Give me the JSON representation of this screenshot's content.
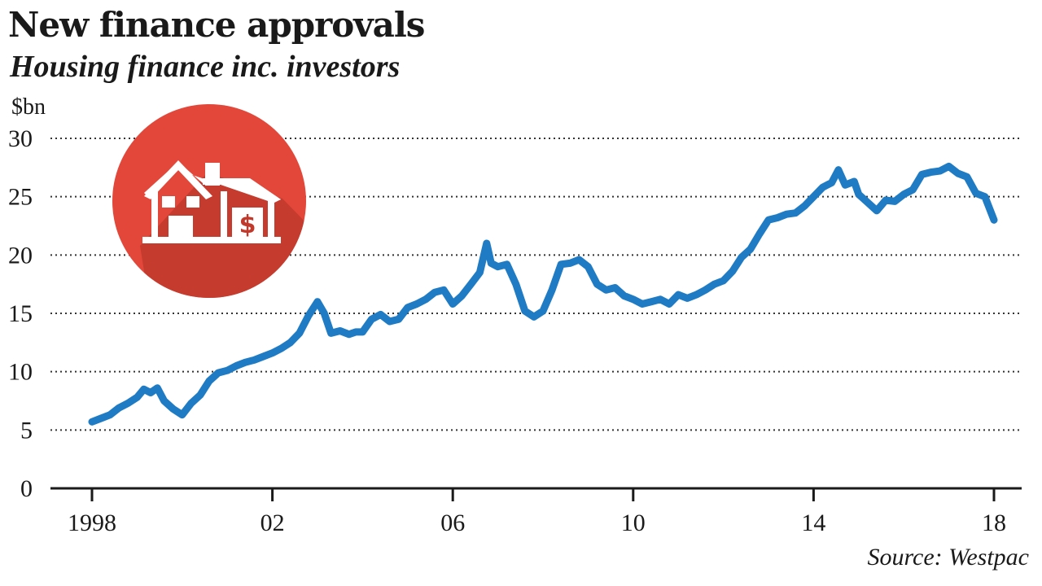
{
  "title": "New finance approvals",
  "subtitle": "Housing finance inc. investors",
  "source": "Source: Westpac",
  "icon": {
    "name": "house-dollar-icon",
    "circle_color": "#e2473a",
    "shadow_color": "#c0392b",
    "house_color": "#ffffff"
  },
  "chart_data": {
    "type": "line",
    "title": "New finance approvals",
    "subtitle": "Housing finance inc. investors",
    "unit": "$bn",
    "xlabel": "",
    "ylabel": "",
    "xlim": [
      1998,
      2018
    ],
    "ylim": [
      0,
      30
    ],
    "yticks": [
      0,
      5,
      10,
      15,
      20,
      25,
      30
    ],
    "ytick_labels": [
      "0",
      "5",
      "10",
      "15",
      "20",
      "25",
      "30"
    ],
    "xticks": [
      1998,
      2002,
      2006,
      2010,
      2014,
      2018
    ],
    "xtick_labels": [
      "1998",
      "02",
      "06",
      "10",
      "14",
      "18"
    ],
    "grid": {
      "horizontal": true,
      "style": "dotted"
    },
    "line_color": "#1f7bc4",
    "series": [
      {
        "x": [
          1998.0,
          1998.2,
          1998.4,
          1998.6,
          1998.8,
          1999.0,
          1999.15,
          1999.3,
          1999.45,
          1999.6,
          1999.8,
          2000.0,
          2000.2,
          2000.4,
          2000.6,
          2000.8,
          2001.0,
          2001.2,
          2001.4,
          2001.6,
          2001.8,
          2002.0,
          2002.2,
          2002.4,
          2002.6,
          2002.8,
          2003.0,
          2003.15,
          2003.3,
          2003.5,
          2003.7,
          2003.85,
          2004.0,
          2004.2,
          2004.4,
          2004.6,
          2004.8,
          2005.0,
          2005.2,
          2005.4,
          2005.6,
          2005.8,
          2006.0,
          2006.2,
          2006.4,
          2006.6,
          2006.75,
          2006.85,
          2007.0,
          2007.2,
          2007.4,
          2007.6,
          2007.8,
          2008.0,
          2008.2,
          2008.4,
          2008.6,
          2008.8,
          2009.0,
          2009.2,
          2009.4,
          2009.6,
          2009.8,
          2010.0,
          2010.2,
          2010.4,
          2010.6,
          2010.8,
          2011.0,
          2011.2,
          2011.4,
          2011.6,
          2011.8,
          2012.0,
          2012.2,
          2012.4,
          2012.6,
          2012.8,
          2013.0,
          2013.2,
          2013.4,
          2013.6,
          2013.8,
          2014.0,
          2014.2,
          2014.4,
          2014.55,
          2014.7,
          2014.9,
          2015.0,
          2015.2,
          2015.4,
          2015.6,
          2015.8,
          2016.0,
          2016.2,
          2016.4,
          2016.6,
          2016.8,
          2017.0,
          2017.2,
          2017.4,
          2017.6,
          2017.8,
          2018.0
        ],
        "values": [
          5.7,
          6.0,
          6.3,
          6.9,
          7.3,
          7.8,
          8.5,
          8.2,
          8.6,
          7.5,
          6.8,
          6.3,
          7.3,
          8.0,
          9.2,
          9.9,
          10.1,
          10.5,
          10.8,
          11.0,
          11.3,
          11.6,
          12.0,
          12.5,
          13.3,
          14.8,
          16.0,
          15.0,
          13.3,
          13.5,
          13.2,
          13.4,
          13.4,
          14.5,
          14.9,
          14.3,
          14.5,
          15.5,
          15.8,
          16.2,
          16.8,
          17.0,
          15.8,
          16.5,
          17.5,
          18.5,
          21.0,
          19.3,
          19.0,
          19.2,
          17.5,
          15.2,
          14.7,
          15.2,
          17.0,
          19.2,
          19.3,
          19.6,
          19.0,
          17.5,
          17.0,
          17.2,
          16.5,
          16.2,
          15.8,
          16.0,
          16.2,
          15.8,
          16.6,
          16.3,
          16.6,
          17.0,
          17.5,
          17.8,
          18.6,
          19.8,
          20.5,
          21.8,
          23.0,
          23.2,
          23.5,
          23.6,
          24.2,
          25.0,
          25.8,
          26.2,
          27.3,
          26.0,
          26.3,
          25.2,
          24.5,
          23.8,
          24.7,
          24.6,
          25.2,
          25.6,
          26.9,
          27.1,
          27.2,
          27.6,
          27.0,
          26.7,
          25.3,
          25.0,
          23.0
        ]
      }
    ]
  }
}
